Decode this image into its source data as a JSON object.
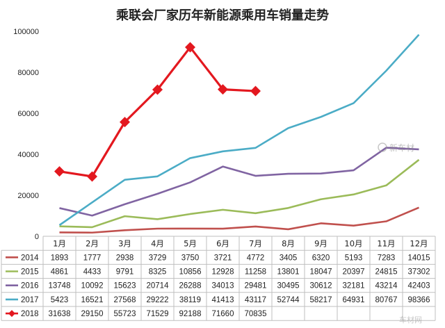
{
  "chart_data": {
    "type": "line",
    "title": "乘联会厂家历年新能源乘用车销量走势",
    "categories": [
      "1月",
      "2月",
      "3月",
      "4月",
      "5月",
      "6月",
      "7月",
      "8月",
      "9月",
      "10月",
      "11月",
      "12月"
    ],
    "ylim": [
      0,
      100000
    ],
    "yticks": [
      0,
      20000,
      40000,
      60000,
      80000,
      100000
    ],
    "ytick_labels": [
      "0",
      "20000",
      "40000",
      "60000",
      "80000",
      "100000"
    ],
    "grid": false,
    "legend": "data-table-below",
    "series": [
      {
        "name": "2014",
        "color": "#c0504d",
        "marker": "none",
        "values": [
          1893,
          1777,
          2938,
          3729,
          3750,
          3721,
          4772,
          3405,
          6320,
          5193,
          7283,
          14015
        ]
      },
      {
        "name": "2015",
        "color": "#9bbb59",
        "marker": "none",
        "values": [
          4861,
          4433,
          9791,
          8325,
          10856,
          12928,
          11258,
          13801,
          18047,
          20397,
          24815,
          37302
        ]
      },
      {
        "name": "2016",
        "color": "#8064a2",
        "marker": "none",
        "values": [
          13748,
          10092,
          15623,
          20714,
          26288,
          34013,
          29481,
          30495,
          30612,
          32181,
          43214,
          42403
        ]
      },
      {
        "name": "2017",
        "color": "#4bacc6",
        "marker": "none",
        "values": [
          5423,
          16521,
          27568,
          29222,
          38119,
          41413,
          43117,
          52744,
          58217,
          64931,
          80767,
          98366
        ]
      },
      {
        "name": "2018",
        "color": "#e3181f",
        "marker": "diamond",
        "values": [
          31638,
          29150,
          55723,
          71529,
          92188,
          71660,
          70835,
          null,
          null,
          null,
          null,
          null
        ]
      }
    ]
  },
  "watermark": {
    "text": "新车材",
    "subtext": "车材网"
  }
}
